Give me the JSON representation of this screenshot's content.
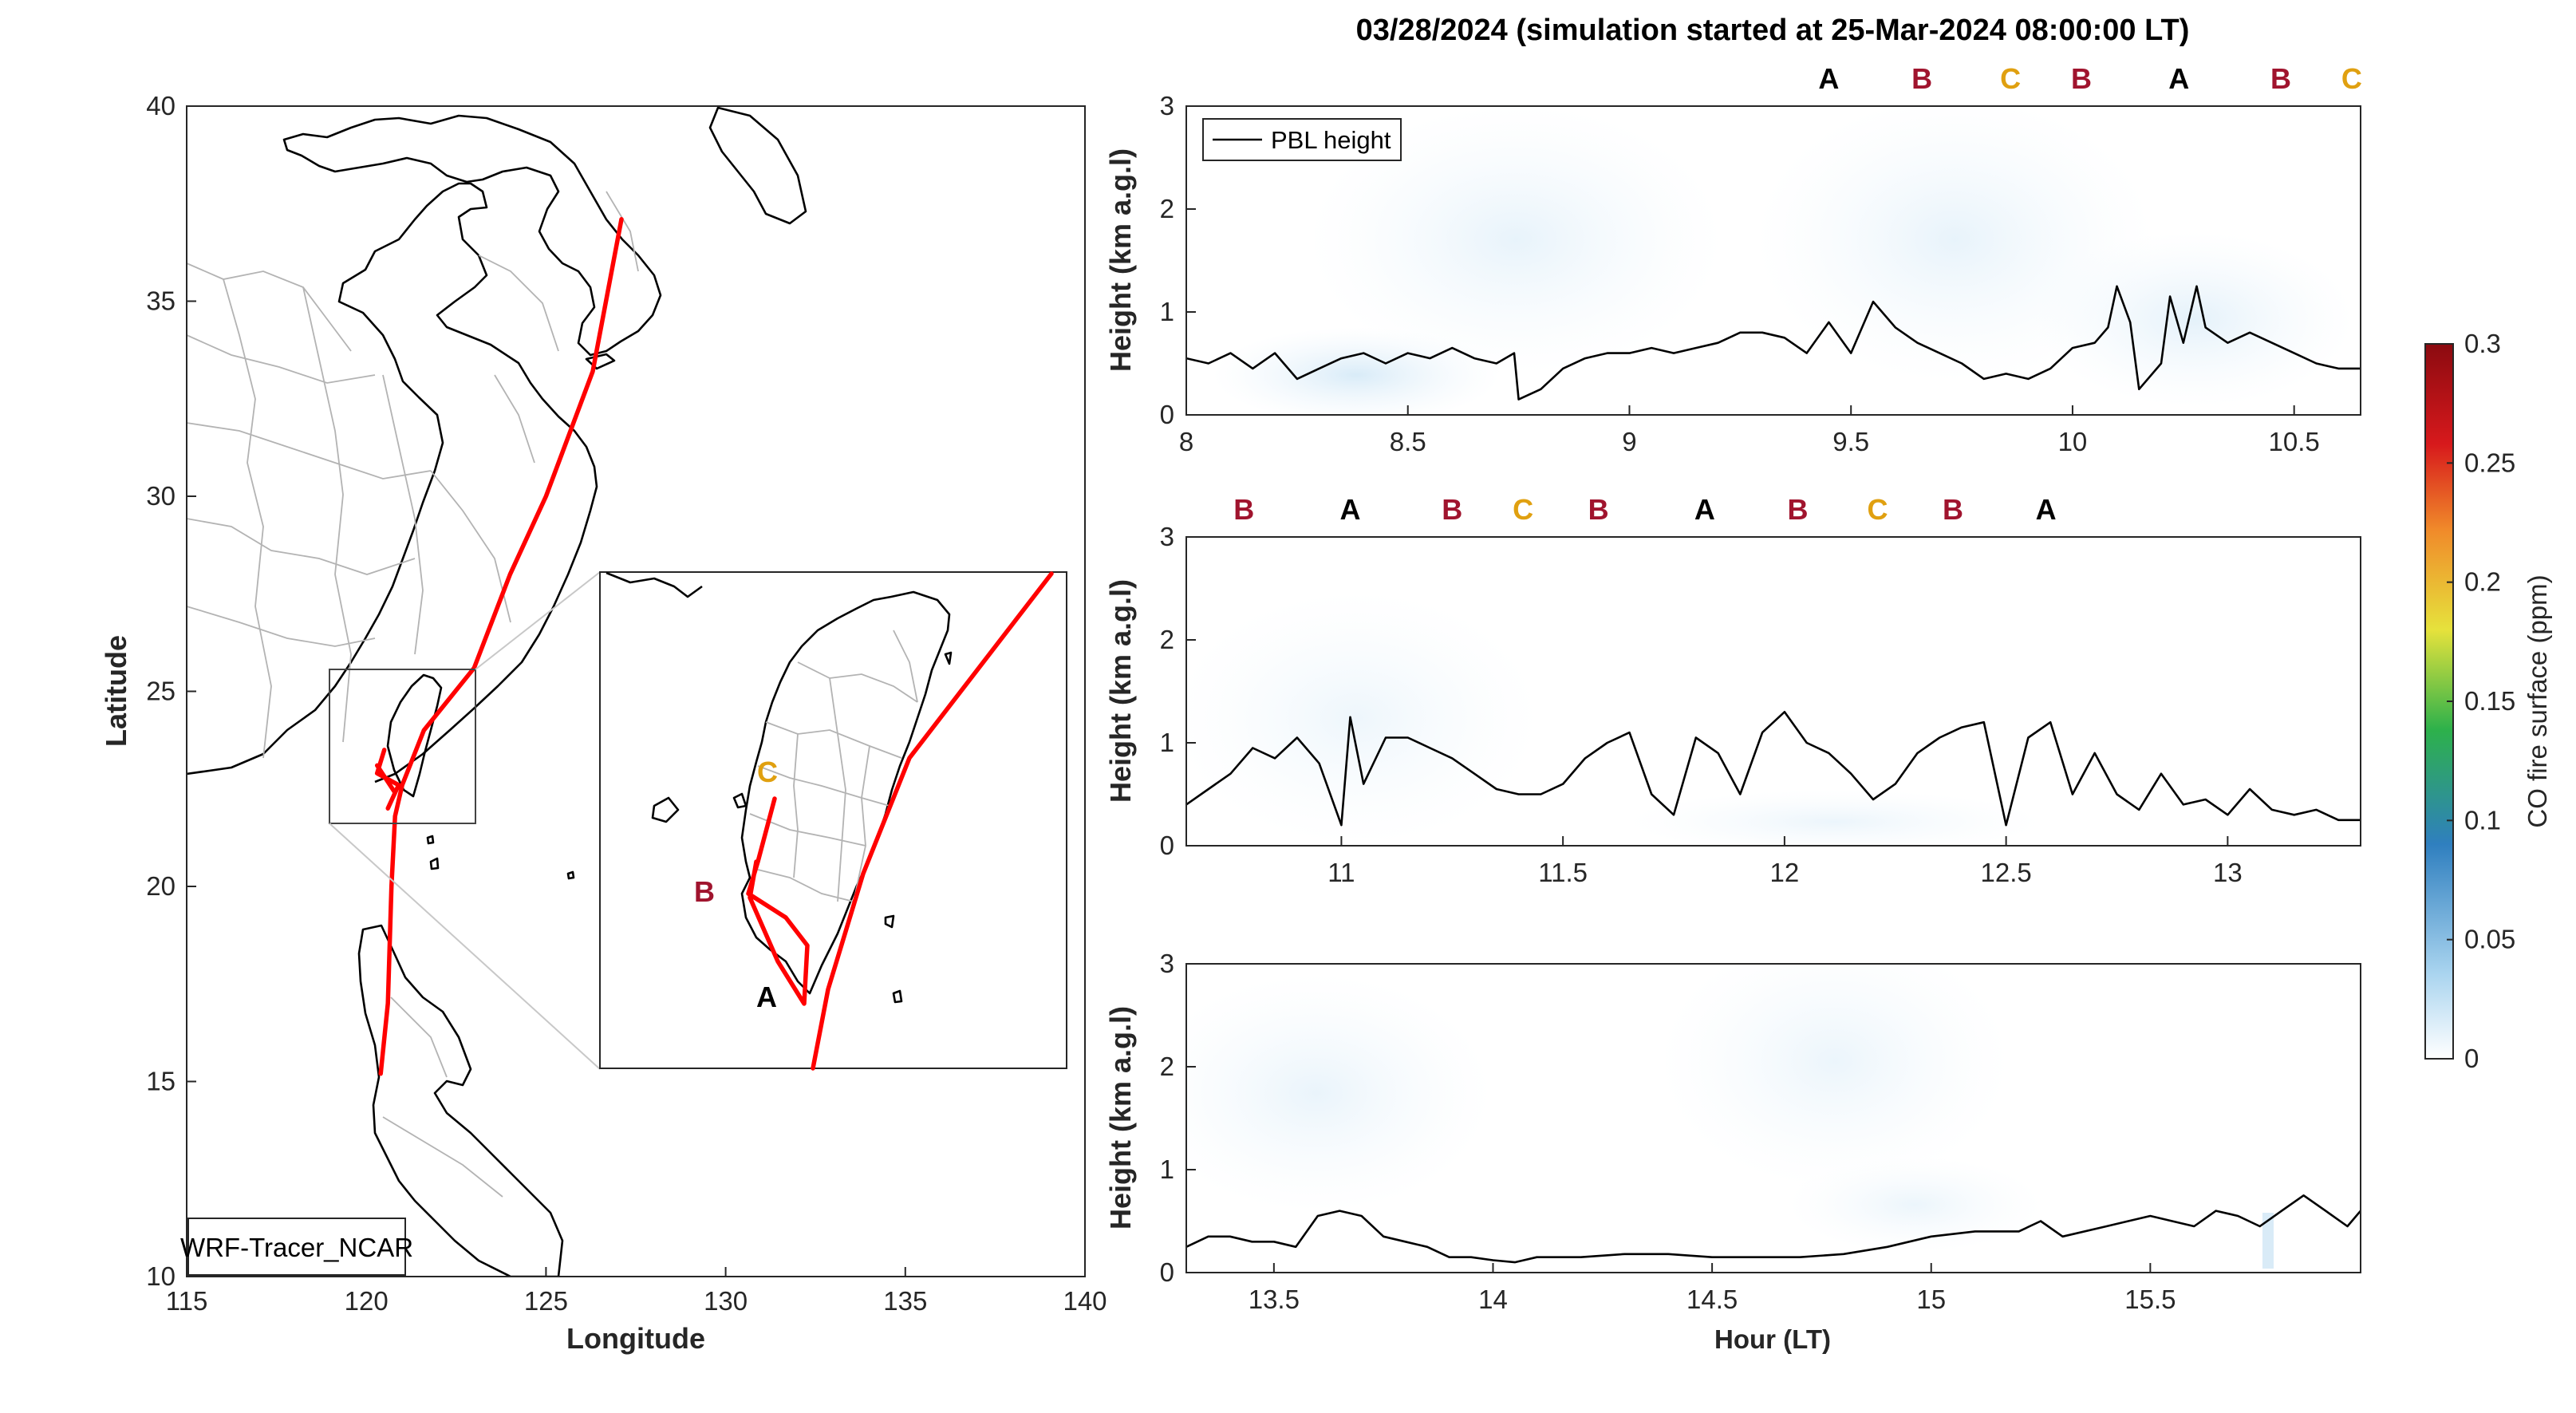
{
  "figure_title": "03/28/2024 (simulation started at 25-Mar-2024 08:00:00 LT)",
  "colors": {
    "track": "#ff0000",
    "label_A": "#000000",
    "label_B": "#a0142e",
    "label_C": "#e0a010",
    "pbl_line": "#000000",
    "colorbar_stops": [
      "#ffffff",
      "#a9d4ef",
      "#2f7fbf",
      "#2db14b",
      "#e6e23c",
      "#f08a2a",
      "#d7191c",
      "#8b0a10"
    ]
  },
  "map": {
    "model_label": "WRF-Tracer_NCAR",
    "xlabel": "Longitude",
    "ylabel": "Latitude",
    "xlim": [
      115,
      140
    ],
    "ylim": [
      10,
      40
    ],
    "xticks": [
      "115",
      "120",
      "125",
      "130",
      "135",
      "140"
    ],
    "yticks": [
      "10",
      "15",
      "20",
      "25",
      "30",
      "35",
      "40"
    ],
    "inset_labels": [
      "C",
      "B",
      "A"
    ]
  },
  "chart_data": [
    {
      "type": "line",
      "panel": "map-track",
      "xlabel": "Longitude",
      "ylabel": "Latitude",
      "xlim": [
        115,
        140
      ],
      "ylim": [
        10,
        40
      ],
      "series": [
        {
          "name": "",
          "x": [
            127.1,
            126.3,
            125.0,
            124.0,
            123.0,
            121.6,
            121.0,
            120.8,
            120.7,
            120.6,
            120.4
          ],
          "y": [
            37.1,
            33.2,
            30.0,
            28.0,
            25.6,
            24.0,
            22.6,
            21.8,
            20.0,
            17.0,
            15.2
          ]
        },
        {
          "name": "",
          "x": [
            120.5,
            120.3,
            120.9,
            120.6,
            120.8,
            120.3
          ],
          "y": [
            23.5,
            22.9,
            22.6,
            22.0,
            22.4,
            23.1
          ]
        }
      ]
    },
    {
      "type": "heatmap",
      "panel": "1",
      "ylabel": "Height (km a.g.l)",
      "xlim": [
        8,
        10.65
      ],
      "ylim": [
        0,
        3
      ],
      "xticks": [
        "8",
        "8.5",
        "9",
        "9.5",
        "10",
        "10.5"
      ],
      "yticks": [
        "0",
        "1",
        "2",
        "3"
      ],
      "legend": [
        "PBL height"
      ],
      "waypoints": [
        {
          "label": "A",
          "x": 9.45
        },
        {
          "label": "B",
          "x": 9.66
        },
        {
          "label": "C",
          "x": 9.86
        },
        {
          "label": "B",
          "x": 10.02
        },
        {
          "label": "A",
          "x": 10.24
        },
        {
          "label": "B",
          "x": 10.47
        },
        {
          "label": "C",
          "x": 10.63
        }
      ],
      "series": [
        {
          "name": "PBL height",
          "x": [
            8.0,
            8.05,
            8.1,
            8.15,
            8.2,
            8.25,
            8.3,
            8.35,
            8.4,
            8.45,
            8.5,
            8.55,
            8.6,
            8.65,
            8.7,
            8.74,
            8.75,
            8.8,
            8.85,
            8.9,
            8.95,
            9.0,
            9.05,
            9.1,
            9.15,
            9.2,
            9.25,
            9.3,
            9.35,
            9.4,
            9.45,
            9.5,
            9.55,
            9.6,
            9.65,
            9.7,
            9.75,
            9.8,
            9.85,
            9.9,
            9.95,
            10.0,
            10.05,
            10.08,
            10.1,
            10.13,
            10.15,
            10.2,
            10.22,
            10.25,
            10.28,
            10.3,
            10.35,
            10.4,
            10.45,
            10.5,
            10.55,
            10.6,
            10.65
          ],
          "y": [
            0.55,
            0.5,
            0.6,
            0.45,
            0.6,
            0.35,
            0.45,
            0.55,
            0.6,
            0.5,
            0.6,
            0.55,
            0.65,
            0.55,
            0.5,
            0.6,
            0.15,
            0.25,
            0.45,
            0.55,
            0.6,
            0.6,
            0.65,
            0.6,
            0.65,
            0.7,
            0.8,
            0.8,
            0.75,
            0.6,
            0.9,
            0.6,
            1.1,
            0.85,
            0.7,
            0.6,
            0.5,
            0.35,
            0.4,
            0.35,
            0.45,
            0.65,
            0.7,
            0.85,
            1.25,
            0.9,
            0.25,
            0.5,
            1.15,
            0.7,
            1.25,
            0.85,
            0.7,
            0.8,
            0.7,
            0.6,
            0.5,
            0.45,
            0.45
          ]
        }
      ]
    },
    {
      "type": "heatmap",
      "panel": "2",
      "ylabel": "Height (km a.g.l)",
      "xlim": [
        10.65,
        13.3
      ],
      "ylim": [
        0,
        3
      ],
      "xticks": [
        "11",
        "11.5",
        "12",
        "12.5",
        "13"
      ],
      "yticks": [
        "0",
        "1",
        "2",
        "3"
      ],
      "waypoints": [
        {
          "label": "B",
          "x": 10.78
        },
        {
          "label": "A",
          "x": 11.02
        },
        {
          "label": "B",
          "x": 11.25
        },
        {
          "label": "C",
          "x": 11.41
        },
        {
          "label": "B",
          "x": 11.58
        },
        {
          "label": "A",
          "x": 11.82
        },
        {
          "label": "B",
          "x": 12.03
        },
        {
          "label": "C",
          "x": 12.21
        },
        {
          "label": "B",
          "x": 12.38
        },
        {
          "label": "A",
          "x": 12.59
        }
      ],
      "series": [
        {
          "name": "PBL height",
          "x": [
            10.65,
            10.7,
            10.75,
            10.8,
            10.85,
            10.9,
            10.95,
            11.0,
            11.02,
            11.05,
            11.1,
            11.15,
            11.2,
            11.25,
            11.3,
            11.35,
            11.4,
            11.45,
            11.5,
            11.55,
            11.6,
            11.65,
            11.7,
            11.75,
            11.8,
            11.85,
            11.9,
            11.95,
            12.0,
            12.05,
            12.1,
            12.15,
            12.2,
            12.25,
            12.3,
            12.35,
            12.4,
            12.45,
            12.5,
            12.55,
            12.6,
            12.65,
            12.7,
            12.75,
            12.8,
            12.85,
            12.9,
            12.95,
            13.0,
            13.05,
            13.1,
            13.15,
            13.2,
            13.25,
            13.3
          ],
          "y": [
            0.4,
            0.55,
            0.7,
            0.95,
            0.85,
            1.05,
            0.8,
            0.2,
            1.25,
            0.6,
            1.05,
            1.05,
            0.95,
            0.85,
            0.7,
            0.55,
            0.5,
            0.5,
            0.6,
            0.85,
            1.0,
            1.1,
            0.5,
            0.3,
            1.05,
            0.9,
            0.5,
            1.1,
            1.3,
            1.0,
            0.9,
            0.7,
            0.45,
            0.6,
            0.9,
            1.05,
            1.15,
            1.2,
            0.2,
            1.05,
            1.2,
            0.5,
            0.9,
            0.5,
            0.35,
            0.7,
            0.4,
            0.45,
            0.3,
            0.55,
            0.35,
            0.3,
            0.35,
            0.25,
            0.25
          ]
        }
      ]
    },
    {
      "type": "heatmap",
      "panel": "3",
      "xlabel": "Hour (LT)",
      "ylabel": "Height (km a.g.l)",
      "xlim": [
        13.3,
        15.98
      ],
      "ylim": [
        0,
        3
      ],
      "xticks": [
        "13.5",
        "14",
        "14.5",
        "15",
        "15.5"
      ],
      "yticks": [
        "0",
        "1",
        "2",
        "3"
      ],
      "series": [
        {
          "name": "PBL height",
          "x": [
            13.3,
            13.35,
            13.4,
            13.45,
            13.5,
            13.55,
            13.6,
            13.65,
            13.7,
            13.75,
            13.8,
            13.85,
            13.9,
            13.95,
            14.0,
            14.05,
            14.1,
            14.2,
            14.3,
            14.4,
            14.5,
            14.6,
            14.7,
            14.8,
            14.9,
            15.0,
            15.1,
            15.2,
            15.25,
            15.3,
            15.4,
            15.5,
            15.55,
            15.6,
            15.65,
            15.7,
            15.75,
            15.8,
            15.85,
            15.9,
            15.95,
            15.98
          ],
          "y": [
            0.25,
            0.35,
            0.35,
            0.3,
            0.3,
            0.25,
            0.55,
            0.6,
            0.55,
            0.35,
            0.3,
            0.25,
            0.15,
            0.15,
            0.12,
            0.1,
            0.15,
            0.15,
            0.18,
            0.18,
            0.15,
            0.15,
            0.15,
            0.18,
            0.25,
            0.35,
            0.4,
            0.4,
            0.5,
            0.35,
            0.45,
            0.55,
            0.5,
            0.45,
            0.6,
            0.55,
            0.45,
            0.6,
            0.75,
            0.6,
            0.45,
            0.6
          ]
        }
      ]
    },
    {
      "type": "colorbar",
      "label": "CO fire surface (ppm)",
      "ylim": [
        0,
        0.3
      ],
      "ticks": [
        "0",
        "0.05",
        "0.1",
        "0.15",
        "0.2",
        "0.25",
        "0.3"
      ]
    }
  ]
}
